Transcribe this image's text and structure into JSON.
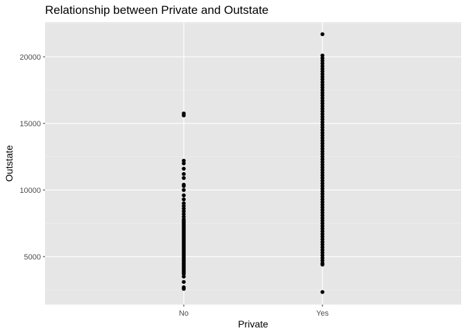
{
  "chart_data": {
    "type": "scatter",
    "title": "Relationship between Private and Outstate",
    "xlabel": "Private",
    "ylabel": "Outstate",
    "categories": [
      "No",
      "Yes"
    ],
    "yticks": [
      5000,
      10000,
      15000,
      20000
    ],
    "ylim": [
      1400,
      22600
    ],
    "grid": true,
    "background": "#e6e6e6",
    "point_color": "#000000",
    "series": [
      {
        "category": "No",
        "values": [
          2580,
          2700,
          3100,
          3500,
          3700,
          3800,
          3900,
          4000,
          4100,
          4200,
          4300,
          4400,
          4500,
          4600,
          4700,
          4800,
          4900,
          5000,
          5100,
          5200,
          5300,
          5400,
          5500,
          5600,
          5700,
          5800,
          5900,
          6000,
          6100,
          6200,
          6300,
          6400,
          6500,
          6600,
          6700,
          6800,
          6900,
          7000,
          7100,
          7200,
          7300,
          7400,
          7500,
          7600,
          7700,
          7800,
          8000,
          8200,
          8400,
          8600,
          8800,
          9000,
          9300,
          9600,
          10000,
          10300,
          10400,
          10900,
          11200,
          11600,
          12000,
          12200,
          15600,
          15750
        ]
      },
      {
        "category": "Yes",
        "values": [
          2340,
          4400,
          4500,
          4700,
          4900,
          5100,
          5300,
          5500,
          5700,
          5900,
          6100,
          6300,
          6500,
          6700,
          6900,
          7100,
          7300,
          7500,
          7700,
          7900,
          8100,
          8300,
          8500,
          8700,
          8900,
          9100,
          9300,
          9500,
          9700,
          9900,
          10100,
          10300,
          10500,
          10700,
          10900,
          11100,
          11300,
          11500,
          11700,
          11900,
          12100,
          12300,
          12500,
          12700,
          12900,
          13100,
          13300,
          13500,
          13700,
          13900,
          14100,
          14300,
          14500,
          14700,
          14900,
          15100,
          15300,
          15500,
          15700,
          15900,
          16100,
          16300,
          16500,
          16700,
          16900,
          17100,
          17300,
          17500,
          17700,
          17900,
          18100,
          18300,
          18500,
          18700,
          18900,
          19100,
          19300,
          19500,
          19700,
          19900,
          20100,
          21700
        ]
      }
    ]
  }
}
